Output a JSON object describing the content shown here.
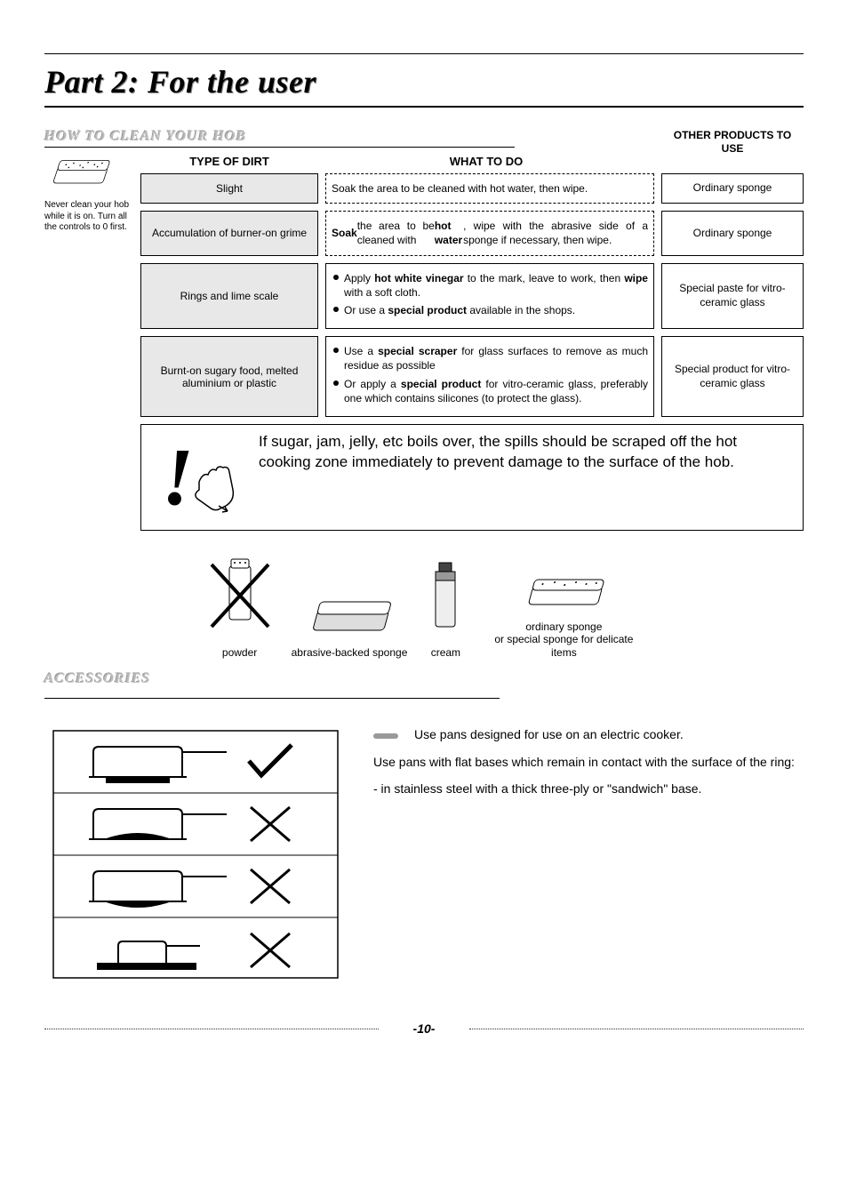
{
  "page": {
    "title": "Part 2:  For the user",
    "number": "-10-"
  },
  "how_to_clean": {
    "heading": "HOW TO CLEAN YOUR HOB",
    "warning_side": "Never clean your hob while it is on. Turn all the controls to 0 first.",
    "columns": {
      "type": "TYPE OF DIRT",
      "what": "WHAT TO DO",
      "other": "OTHER PRODUCTS TO USE"
    },
    "rows": [
      {
        "type": "Slight",
        "what_html": "Soak the area to be cleaned with hot water, then wipe.",
        "other": "Ordinary sponge"
      },
      {
        "type": "Accumulation of burner-on grime",
        "what_html": "<b>Soak</b> the area to be cleaned with <b>hot water</b>, wipe with the abrasive side of a sponge if necessary, then wipe.",
        "other": "Ordinary sponge"
      },
      {
        "type": "Rings and lime scale",
        "what_list": [
          "Apply <b>hot white vinegar</b> to the mark, leave to work, then <b>wipe</b> with a soft cloth.",
          "Or use a <b>special product</b> available in the shops."
        ],
        "other": "Special paste for vitro-ceramic glass"
      },
      {
        "type": "Burnt-on sugary food, melted aluminium or plastic",
        "what_list": [
          "Use a <b>special scraper</b> for glass surfaces to remove as much residue as possible",
          "Or apply a <b>special product</b> for vitro-ceramic glass, preferably one which contains silicones (to protect the glass)."
        ],
        "other": "Special product for vitro-ceramic glass"
      }
    ],
    "alert": "If sugar, jam, jelly, etc boils over, the spills should be scraped off the hot cooking zone immediately to prevent damage to the surface of the hob.",
    "do_not_use": {
      "powder": "powder",
      "abrasive": "abrasive-backed sponge",
      "cream": "cream",
      "ordinary": "ordinary sponge\nor special sponge for delicate items"
    }
  },
  "accessories": {
    "heading": "ACCESSORIES",
    "p1": "Use pans designed for use on an electric cooker.",
    "p2": "Use pans with flat bases which remain in contact with the surface of the ring:",
    "p3": "- in stainless steel with a thick three-ply or \"sandwich\" base."
  },
  "colors": {
    "cell_bg": "#e8e8e8",
    "text": "#000000"
  }
}
